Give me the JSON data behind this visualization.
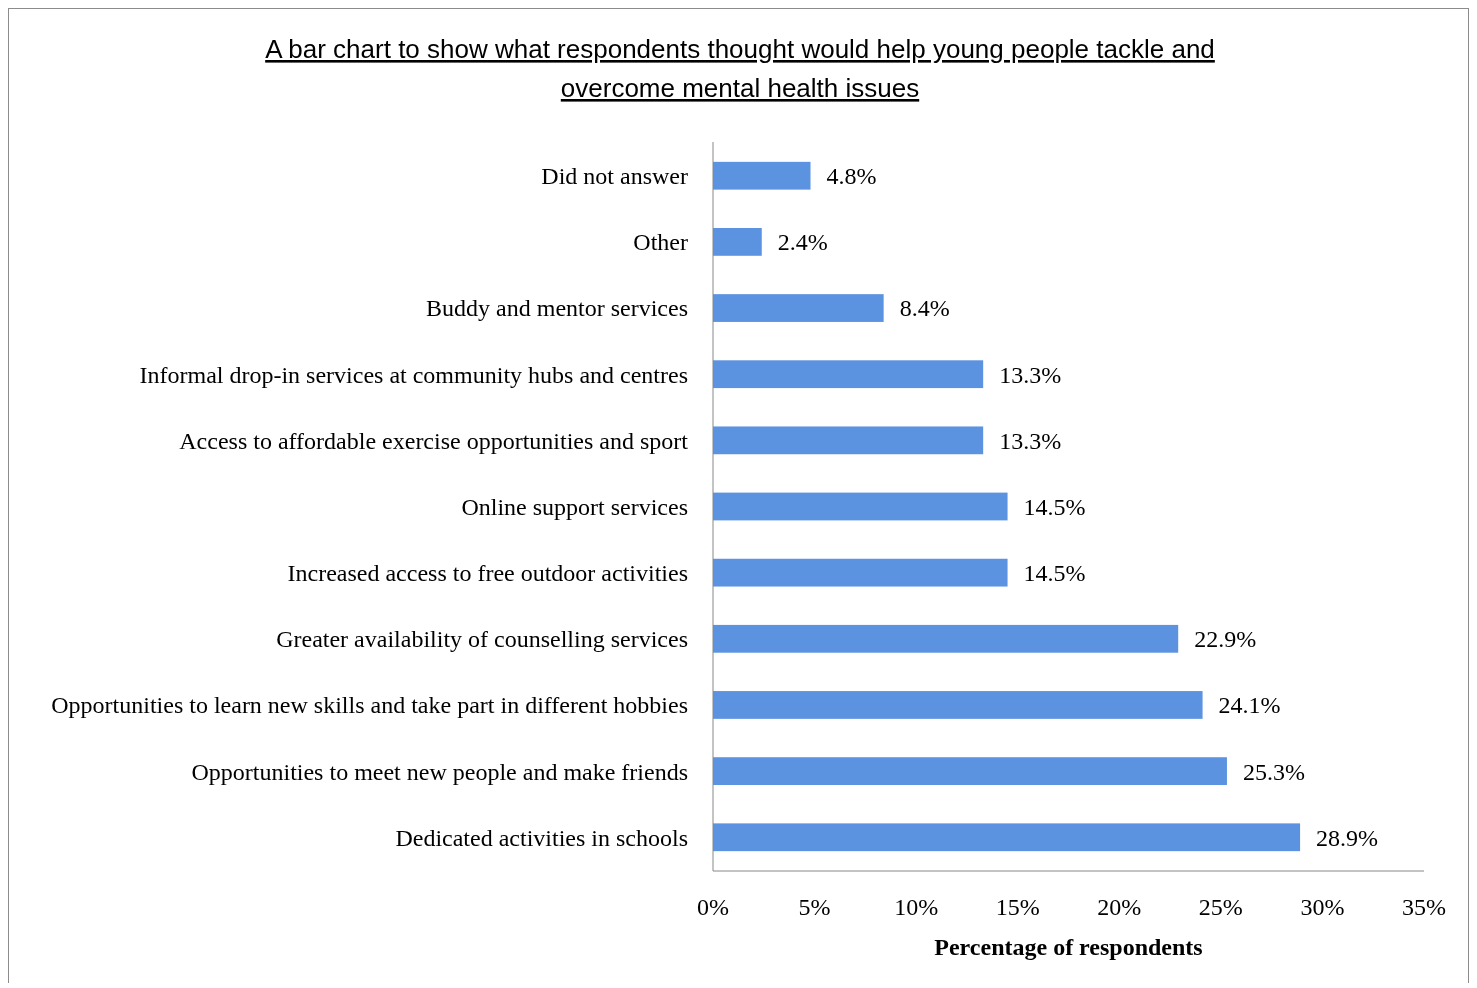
{
  "chart_data": {
    "type": "bar",
    "orientation": "horizontal",
    "title": "A bar chart to show what respondents thought would help young people tackle and overcome mental health issues",
    "xlabel": "Percentage of respondents",
    "categories": [
      "Did not answer",
      "Other",
      "Buddy and mentor services",
      "Informal drop-in services at community hubs and centres",
      "Access to affordable exercise opportunities and sport",
      "Online support services",
      "Increased access to free outdoor activities",
      "Greater availability of counselling services",
      "Opportunities to learn new skills and take part in different hobbies",
      "Opportunities to meet new people and make friends",
      "Dedicated activities in schools"
    ],
    "values": [
      4.8,
      2.4,
      8.4,
      13.3,
      13.3,
      14.5,
      14.5,
      22.9,
      24.1,
      25.3,
      28.9
    ],
    "value_labels": [
      "4.8%",
      "2.4%",
      "8.4%",
      "13.3%",
      "13.3%",
      "14.5%",
      "14.5%",
      "22.9%",
      "24.1%",
      "25.3%",
      "28.9%"
    ],
    "color": "#5b93e0",
    "xlim": [
      0,
      35
    ],
    "xticks": [
      {
        "value": 0,
        "label": "0%"
      },
      {
        "value": 5,
        "label": "5%"
      },
      {
        "value": 10,
        "label": "10%"
      },
      {
        "value": 15,
        "label": "15%"
      },
      {
        "value": 20,
        "label": "20%"
      },
      {
        "value": 25,
        "label": "25%"
      },
      {
        "value": 30,
        "label": "30%"
      },
      {
        "value": 35,
        "label": "35%"
      }
    ],
    "grid": false
  }
}
